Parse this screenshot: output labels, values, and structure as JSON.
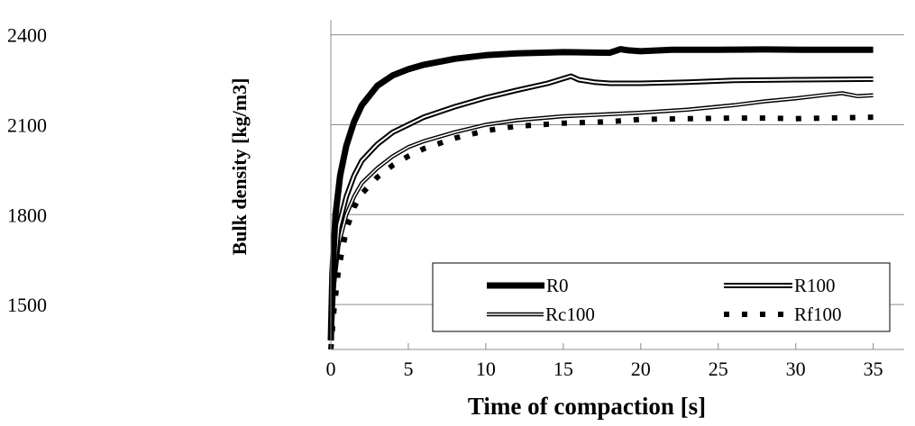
{
  "chart_data": {
    "type": "line",
    "xlabel": "Time of compaction [s]",
    "ylabel": "Bulk density [kg/m3]",
    "xlim": [
      0,
      37
    ],
    "ylim": [
      1350,
      2450
    ],
    "x_ticks": [
      "0",
      "5",
      "10",
      "15",
      "20",
      "25",
      "30",
      "35"
    ],
    "y_ticks": [
      "2400",
      "2100",
      "1800",
      "1500"
    ],
    "grid": "horizontal",
    "legend_position": "lower-right",
    "series": [
      {
        "name": "R0",
        "style": "thick-solid",
        "x": [
          0,
          0.1,
          0.3,
          0.6,
          1,
          1.5,
          2,
          3,
          4,
          5,
          6,
          8,
          10,
          12,
          15,
          18,
          18.7,
          19.2,
          20,
          22,
          25,
          28,
          31,
          35
        ],
        "y": [
          1380,
          1600,
          1800,
          1930,
          2030,
          2110,
          2165,
          2230,
          2265,
          2285,
          2300,
          2320,
          2332,
          2338,
          2342,
          2340,
          2352,
          2348,
          2345,
          2350,
          2350,
          2351,
          2350,
          2350
        ]
      },
      {
        "name": "R100",
        "style": "double-line",
        "x": [
          0,
          0.2,
          0.5,
          1,
          1.5,
          2,
          3,
          4,
          5,
          6,
          8,
          10,
          12,
          14,
          15.5,
          16,
          17,
          18,
          20,
          23,
          26,
          30,
          35
        ],
        "y": [
          1380,
          1600,
          1760,
          1860,
          1930,
          1980,
          2035,
          2075,
          2100,
          2125,
          2160,
          2190,
          2215,
          2238,
          2262,
          2250,
          2242,
          2238,
          2238,
          2242,
          2248,
          2250,
          2252
        ]
      },
      {
        "name": "Rc100",
        "style": "double-line-thin",
        "x": [
          0,
          0.2,
          0.5,
          1,
          1.5,
          2,
          3,
          4,
          5,
          6,
          8,
          10,
          12,
          15,
          18,
          20,
          23,
          26,
          28,
          30,
          32,
          33,
          34,
          35
        ],
        "y": [
          1380,
          1560,
          1700,
          1800,
          1860,
          1905,
          1955,
          1995,
          2025,
          2045,
          2075,
          2100,
          2115,
          2128,
          2135,
          2140,
          2150,
          2165,
          2178,
          2188,
          2200,
          2205,
          2195,
          2198
        ]
      },
      {
        "name": "Rf100",
        "style": "dotted",
        "x": [
          0,
          0.2,
          0.5,
          1,
          1.5,
          2,
          3,
          4,
          5,
          6,
          8,
          10,
          12,
          15,
          18,
          20,
          23,
          26,
          28,
          30,
          32,
          35
        ],
        "y": [
          1350,
          1480,
          1620,
          1750,
          1825,
          1870,
          1925,
          1965,
          1995,
          2020,
          2055,
          2080,
          2095,
          2105,
          2110,
          2118,
          2120,
          2122,
          2122,
          2120,
          2122,
          2125
        ]
      }
    ]
  }
}
